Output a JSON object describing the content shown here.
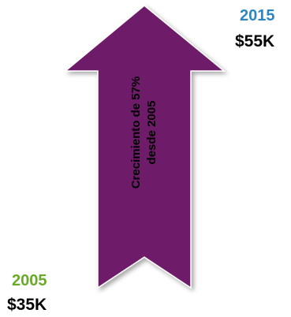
{
  "end": {
    "year": "2015",
    "amount": "$55K"
  },
  "start": {
    "year": "2005",
    "amount": "$35K"
  },
  "arrow": {
    "line1": "Crecimiento de  57%",
    "line2": "desde 2005"
  },
  "colors": {
    "arrow_fill": "#6e1a6b",
    "end_year": "#2e86c1",
    "start_year": "#6aaa2b",
    "amount": "#000000"
  }
}
